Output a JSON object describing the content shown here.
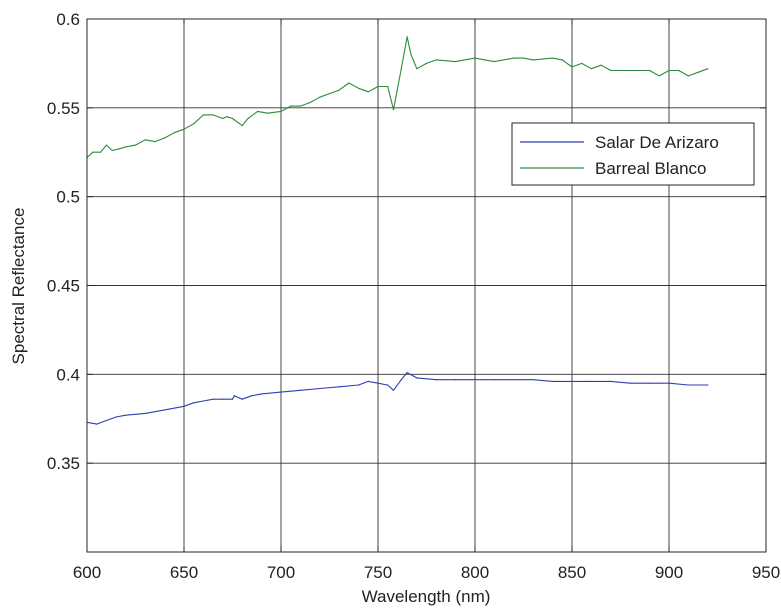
{
  "chart_data": {
    "type": "line",
    "title": "",
    "xlabel": "Wavelength (nm)",
    "ylabel": "Spectral Reflectance",
    "xlim": [
      600,
      950
    ],
    "ylim": [
      0.3,
      0.6
    ],
    "xticks": [
      600,
      650,
      700,
      750,
      800,
      850,
      900,
      950
    ],
    "yticks": [
      0.35,
      0.4,
      0.45,
      0.5,
      0.55,
      0.6
    ],
    "xtick_labels": [
      "600",
      "650",
      "700",
      "750",
      "800",
      "850",
      "900",
      "950"
    ],
    "ytick_labels": [
      "",
      "0.35",
      "0.4",
      "0.45",
      "0.5",
      "0.55",
      "0.6"
    ],
    "grid": true,
    "legend": "upper-right",
    "series": [
      {
        "name": "Salar De Arizaro",
        "color": "#2f3fae",
        "x": [
          600,
          605,
          610,
          615,
          620,
          630,
          640,
          650,
          655,
          660,
          665,
          670,
          675,
          676,
          680,
          685,
          690,
          700,
          710,
          720,
          730,
          740,
          745,
          750,
          755,
          758,
          762,
          765,
          770,
          780,
          790,
          800,
          810,
          820,
          830,
          840,
          850,
          860,
          870,
          880,
          890,
          900,
          910,
          920
        ],
        "y": [
          0.373,
          0.372,
          0.374,
          0.376,
          0.377,
          0.378,
          0.38,
          0.382,
          0.384,
          0.385,
          0.386,
          0.386,
          0.386,
          0.388,
          0.386,
          0.388,
          0.389,
          0.39,
          0.391,
          0.392,
          0.393,
          0.394,
          0.396,
          0.395,
          0.394,
          0.391,
          0.397,
          0.401,
          0.398,
          0.397,
          0.397,
          0.397,
          0.397,
          0.397,
          0.397,
          0.396,
          0.396,
          0.396,
          0.396,
          0.395,
          0.395,
          0.395,
          0.394,
          0.394
        ]
      },
      {
        "name": "Barreal Blanco",
        "color": "#2e8b3a",
        "x": [
          600,
          603,
          607,
          610,
          613,
          617,
          620,
          625,
          630,
          635,
          640,
          645,
          650,
          655,
          660,
          665,
          670,
          672,
          675,
          680,
          683,
          688,
          693,
          700,
          705,
          710,
          715,
          720,
          725,
          730,
          735,
          740,
          745,
          750,
          755,
          758,
          762,
          765,
          767,
          770,
          775,
          780,
          790,
          800,
          805,
          810,
          820,
          825,
          830,
          840,
          845,
          850,
          855,
          860,
          865,
          870,
          880,
          890,
          895,
          900,
          905,
          910,
          915,
          920
        ],
        "y": [
          0.522,
          0.525,
          0.525,
          0.529,
          0.526,
          0.527,
          0.528,
          0.529,
          0.532,
          0.531,
          0.533,
          0.536,
          0.538,
          0.541,
          0.546,
          0.546,
          0.544,
          0.545,
          0.544,
          0.54,
          0.544,
          0.548,
          0.547,
          0.548,
          0.551,
          0.551,
          0.553,
          0.556,
          0.558,
          0.56,
          0.564,
          0.561,
          0.559,
          0.562,
          0.562,
          0.549,
          0.572,
          0.59,
          0.58,
          0.572,
          0.575,
          0.577,
          0.576,
          0.578,
          0.577,
          0.576,
          0.578,
          0.578,
          0.577,
          0.578,
          0.577,
          0.573,
          0.575,
          0.572,
          0.574,
          0.571,
          0.571,
          0.571,
          0.568,
          0.571,
          0.571,
          0.568,
          0.57,
          0.572
        ]
      }
    ]
  }
}
